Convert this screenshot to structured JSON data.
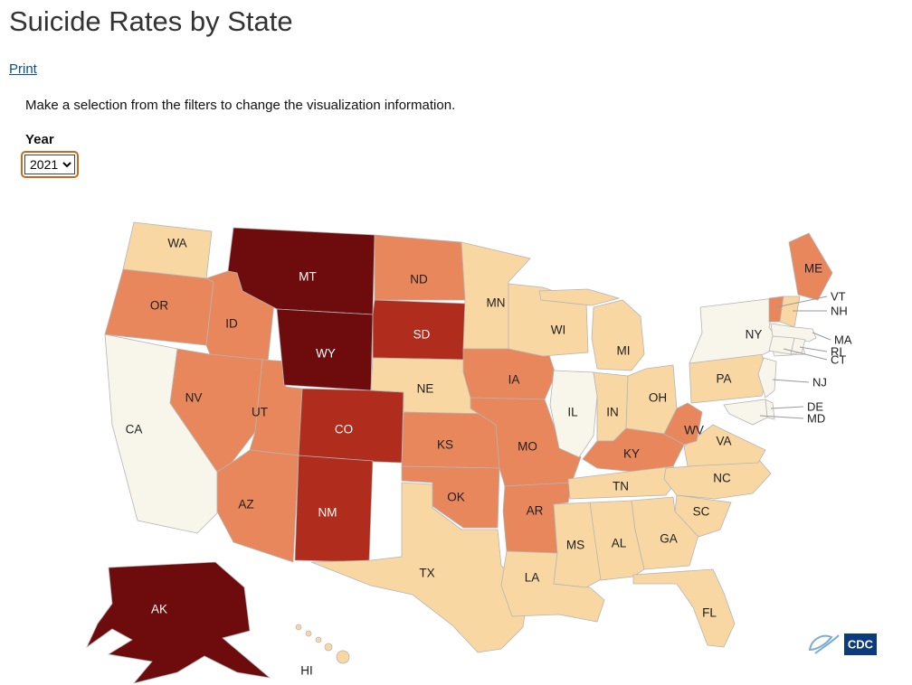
{
  "page": {
    "title": "Suicide Rates by State",
    "print_label": "Print",
    "instruction": "Make a selection from the filters to change the visualization information.",
    "filter": {
      "label": "Year",
      "selected": "2021",
      "options": [
        "2021"
      ]
    }
  },
  "palette": {
    "lowest": "#f8f5eb",
    "low": "#f8d7a3",
    "medium": "#e8875c",
    "high": "#b02c1c",
    "highest": "#6e0b0d"
  },
  "map": {
    "logo_text": "CDC",
    "states": [
      {
        "abbr": "WA",
        "level": "low",
        "color": "#f8d7a3"
      },
      {
        "abbr": "OR",
        "level": "medium",
        "color": "#e8875c"
      },
      {
        "abbr": "CA",
        "level": "lowest",
        "color": "#f8f5eb"
      },
      {
        "abbr": "ID",
        "level": "medium",
        "color": "#e8875c"
      },
      {
        "abbr": "NV",
        "level": "medium",
        "color": "#e8875c"
      },
      {
        "abbr": "UT",
        "level": "medium",
        "color": "#e8875c"
      },
      {
        "abbr": "AZ",
        "level": "medium",
        "color": "#e8875c"
      },
      {
        "abbr": "MT",
        "level": "highest",
        "color": "#6e0b0d"
      },
      {
        "abbr": "WY",
        "level": "highest",
        "color": "#6e0b0d"
      },
      {
        "abbr": "CO",
        "level": "high",
        "color": "#b02c1c"
      },
      {
        "abbr": "NM",
        "level": "high",
        "color": "#b02c1c"
      },
      {
        "abbr": "ND",
        "level": "medium",
        "color": "#e8875c"
      },
      {
        "abbr": "SD",
        "level": "high",
        "color": "#b02c1c"
      },
      {
        "abbr": "NE",
        "level": "low",
        "color": "#f8d7a3"
      },
      {
        "abbr": "KS",
        "level": "medium",
        "color": "#e8875c"
      },
      {
        "abbr": "OK",
        "level": "medium",
        "color": "#e8875c"
      },
      {
        "abbr": "TX",
        "level": "low",
        "color": "#f8d7a3"
      },
      {
        "abbr": "MN",
        "level": "low",
        "color": "#f8d7a3"
      },
      {
        "abbr": "IA",
        "level": "medium",
        "color": "#e8875c"
      },
      {
        "abbr": "MO",
        "level": "medium",
        "color": "#e8875c"
      },
      {
        "abbr": "AR",
        "level": "medium",
        "color": "#e8875c"
      },
      {
        "abbr": "LA",
        "level": "low",
        "color": "#f8d7a3"
      },
      {
        "abbr": "WI",
        "level": "low",
        "color": "#f8d7a3"
      },
      {
        "abbr": "IL",
        "level": "lowest",
        "color": "#f8f5eb"
      },
      {
        "abbr": "MI",
        "level": "low",
        "color": "#f8d7a3"
      },
      {
        "abbr": "IN",
        "level": "low",
        "color": "#f8d7a3"
      },
      {
        "abbr": "OH",
        "level": "low",
        "color": "#f8d7a3"
      },
      {
        "abbr": "KY",
        "level": "medium",
        "color": "#e8875c"
      },
      {
        "abbr": "TN",
        "level": "low",
        "color": "#f8d7a3"
      },
      {
        "abbr": "MS",
        "level": "low",
        "color": "#f8d7a3"
      },
      {
        "abbr": "AL",
        "level": "low",
        "color": "#f8d7a3"
      },
      {
        "abbr": "GA",
        "level": "low",
        "color": "#f8d7a3"
      },
      {
        "abbr": "FL",
        "level": "low",
        "color": "#f8d7a3"
      },
      {
        "abbr": "SC",
        "level": "low",
        "color": "#f8d7a3"
      },
      {
        "abbr": "NC",
        "level": "low",
        "color": "#f8d7a3"
      },
      {
        "abbr": "VA",
        "level": "low",
        "color": "#f8d7a3"
      },
      {
        "abbr": "WV",
        "level": "medium",
        "color": "#e8875c"
      },
      {
        "abbr": "PA",
        "level": "low",
        "color": "#f8d7a3"
      },
      {
        "abbr": "NY",
        "level": "lowest",
        "color": "#f8f5eb"
      },
      {
        "abbr": "NJ",
        "level": "lowest",
        "color": "#f8f5eb"
      },
      {
        "abbr": "DE",
        "level": "lowest",
        "color": "#f8f5eb"
      },
      {
        "abbr": "MD",
        "level": "lowest",
        "color": "#f8f5eb"
      },
      {
        "abbr": "VT",
        "level": "medium",
        "color": "#e8875c"
      },
      {
        "abbr": "NH",
        "level": "low",
        "color": "#f8d7a3"
      },
      {
        "abbr": "MA",
        "level": "lowest",
        "color": "#f8f5eb"
      },
      {
        "abbr": "RI",
        "level": "lowest",
        "color": "#f8f5eb"
      },
      {
        "abbr": "CT",
        "level": "lowest",
        "color": "#f8f5eb"
      },
      {
        "abbr": "ME",
        "level": "medium",
        "color": "#e8875c"
      },
      {
        "abbr": "AK",
        "level": "highest",
        "color": "#6e0b0d"
      },
      {
        "abbr": "HI",
        "level": "low",
        "color": "#f8d7a3"
      }
    ]
  }
}
